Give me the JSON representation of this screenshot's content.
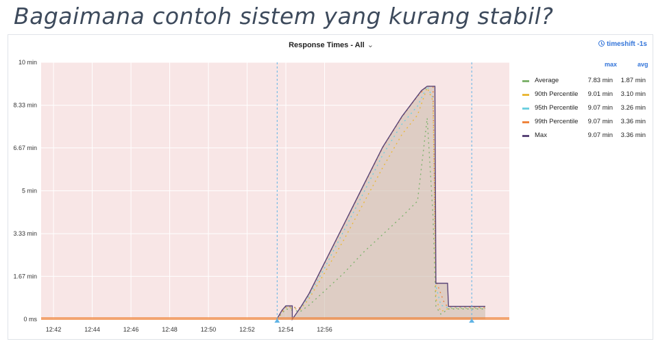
{
  "slide": {
    "title": "Bagaimana contoh sistem yang kurang stabil?"
  },
  "panel": {
    "title": "Response Times - All",
    "timeshift": "timeshift -1s",
    "icons": {
      "dropdown": "chevron-down-icon",
      "timeshift": "clock-icon"
    }
  },
  "legend": {
    "headers": {
      "max": "max",
      "avg": "avg"
    },
    "rows": [
      {
        "name": "Average",
        "max": "7.83 min",
        "avg": "1.87 min",
        "color": "#7eb26d"
      },
      {
        "name": "90th Percentile",
        "max": "9.01 min",
        "avg": "3.10 min",
        "color": "#eab839"
      },
      {
        "name": "95th Percentile",
        "max": "9.07 min",
        "avg": "3.26 min",
        "color": "#6ed0e0"
      },
      {
        "name": "99th Percentile",
        "max": "9.07 min",
        "avg": "3.36 min",
        "color": "#ef843c"
      },
      {
        "name": "Max",
        "max": "9.07 min",
        "avg": "3.36 min",
        "color": "#584477"
      }
    ]
  },
  "chart_data": {
    "type": "line",
    "title": "Response Times - All",
    "x_unit": "minutes since 12:41 (clock time)",
    "ylim": [
      0,
      10
    ],
    "y_unit": "min",
    "y_ticks": [
      {
        "value": 0,
        "label": "0 ms"
      },
      {
        "value": 1.67,
        "label": "1.67 min"
      },
      {
        "value": 3.33,
        "label": "3.33 min"
      },
      {
        "value": 5,
        "label": "5 min"
      },
      {
        "value": 6.67,
        "label": "6.67 min"
      },
      {
        "value": 8.33,
        "label": "8.33 min"
      },
      {
        "value": 10,
        "label": "10 min"
      }
    ],
    "x_ticks": [
      "12:42",
      "12:44",
      "12:46",
      "12:48",
      "12:50",
      "12:52",
      "12:54",
      "12:56"
    ],
    "background_color": "#f8e6e6",
    "grid": true,
    "legend_position": "right",
    "series": [
      {
        "name": "Max",
        "color": "#584477",
        "fill": true,
        "points": [
          [
            12.53,
            0
          ],
          [
            12.8,
            0.35
          ],
          [
            13.0,
            0.52
          ],
          [
            13.33,
            0.52
          ],
          [
            13.33,
            0
          ],
          [
            13.75,
            0.45
          ],
          [
            14.2,
            1.0
          ],
          [
            15.0,
            2.2
          ],
          [
            16.0,
            3.7
          ],
          [
            17.0,
            5.2
          ],
          [
            18.0,
            6.7
          ],
          [
            19.0,
            7.9
          ],
          [
            19.8,
            8.7
          ],
          [
            20.0,
            8.9
          ],
          [
            20.3,
            9.07
          ],
          [
            20.7,
            9.07
          ],
          [
            20.75,
            1.4
          ],
          [
            21.35,
            1.4
          ],
          [
            21.4,
            0.5
          ],
          [
            22.5,
            0.5
          ],
          [
            23.3,
            0.5
          ]
        ]
      },
      {
        "name": "99th Percentile",
        "color": "#ef843c",
        "fill": false,
        "points": [
          [
            12.53,
            0
          ],
          [
            13.0,
            0.5
          ],
          [
            13.75,
            0.44
          ],
          [
            14.2,
            0.98
          ],
          [
            15.0,
            2.18
          ],
          [
            16.0,
            3.68
          ],
          [
            17.0,
            5.18
          ],
          [
            18.0,
            6.68
          ],
          [
            19.0,
            7.88
          ],
          [
            19.8,
            8.68
          ],
          [
            20.3,
            9.07
          ],
          [
            20.6,
            9.07
          ],
          [
            20.75,
            1.5
          ],
          [
            21.2,
            0.6
          ],
          [
            21.4,
            0.48
          ],
          [
            23.3,
            0.46
          ]
        ]
      },
      {
        "name": "95th Percentile",
        "color": "#6ed0e0",
        "fill": false,
        "points": [
          [
            12.53,
            0
          ],
          [
            13.0,
            0.48
          ],
          [
            13.75,
            0.42
          ],
          [
            14.2,
            0.9
          ],
          [
            15.0,
            2.0
          ],
          [
            16.0,
            3.45
          ],
          [
            17.0,
            4.9
          ],
          [
            18.0,
            6.4
          ],
          [
            19.0,
            7.6
          ],
          [
            19.8,
            8.3
          ],
          [
            20.3,
            9.07
          ],
          [
            20.6,
            8.6
          ],
          [
            20.75,
            1.3
          ],
          [
            21.0,
            0.55
          ],
          [
            21.4,
            0.44
          ],
          [
            23.3,
            0.44
          ]
        ]
      },
      {
        "name": "90th Percentile",
        "color": "#eab839",
        "fill": false,
        "points": [
          [
            12.53,
            0
          ],
          [
            13.0,
            0.45
          ],
          [
            13.75,
            0.38
          ],
          [
            14.2,
            0.8
          ],
          [
            15.0,
            1.8
          ],
          [
            16.0,
            3.1
          ],
          [
            17.0,
            4.5
          ],
          [
            18.0,
            5.9
          ],
          [
            19.0,
            7.2
          ],
          [
            19.8,
            7.95
          ],
          [
            20.3,
            9.01
          ],
          [
            20.6,
            8.5
          ],
          [
            20.75,
            0.8
          ],
          [
            21.0,
            0.3
          ],
          [
            21.4,
            0.42
          ],
          [
            23.3,
            0.42
          ]
        ]
      },
      {
        "name": "Average",
        "color": "#7eb26d",
        "fill": false,
        "points": [
          [
            12.53,
            0
          ],
          [
            13.0,
            0.4
          ],
          [
            13.75,
            0.3
          ],
          [
            14.2,
            0.55
          ],
          [
            15.0,
            1.1
          ],
          [
            16.0,
            1.8
          ],
          [
            17.0,
            2.6
          ],
          [
            18.0,
            3.3
          ],
          [
            19.0,
            4.0
          ],
          [
            19.8,
            4.6
          ],
          [
            20.3,
            7.83
          ],
          [
            20.6,
            4.0
          ],
          [
            20.75,
            0.5
          ],
          [
            21.0,
            0.2
          ],
          [
            21.4,
            0.4
          ],
          [
            23.3,
            0.4
          ]
        ]
      }
    ],
    "markers": [
      {
        "type": "vertical-dashed",
        "x": 12.55
      },
      {
        "type": "vertical-dashed",
        "x": 22.6
      }
    ]
  }
}
